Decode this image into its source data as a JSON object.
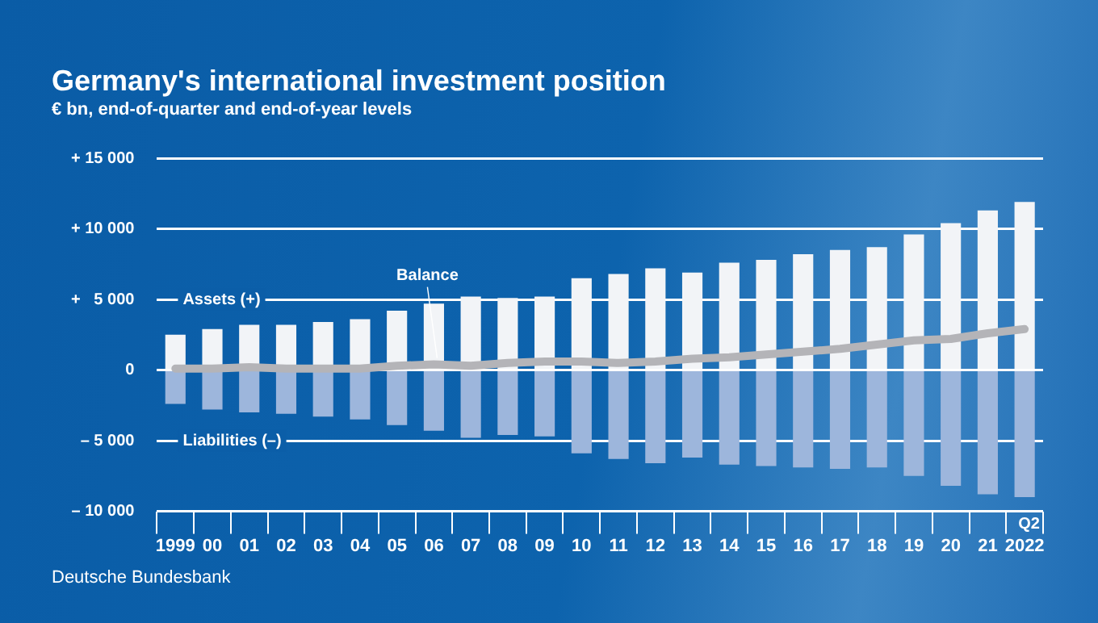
{
  "chart_data": {
    "type": "bar",
    "title": "Germany's international investment position",
    "subtitle": "€ bn, end-of-quarter and end-of-year levels",
    "categories": [
      "1999",
      "00",
      "01",
      "02",
      "03",
      "04",
      "05",
      "06",
      "07",
      "08",
      "09",
      "10",
      "11",
      "12",
      "13",
      "14",
      "15",
      "16",
      "17",
      "18",
      "19",
      "20",
      "21",
      "2022"
    ],
    "series": [
      {
        "name": "Assets (+)",
        "color": "#f2f4f7",
        "values": [
          2500,
          2900,
          3200,
          3200,
          3400,
          3600,
          4200,
          4700,
          5200,
          5100,
          5200,
          6500,
          6800,
          7200,
          6900,
          7600,
          7800,
          8200,
          8500,
          8700,
          9600,
          10400,
          11300,
          11900
        ]
      },
      {
        "name": "Liabilities (–)",
        "color": "#9db6dc",
        "values": [
          -2400,
          -2800,
          -3000,
          -3100,
          -3300,
          -3500,
          -3900,
          -4300,
          -4800,
          -4600,
          -4700,
          -5900,
          -6300,
          -6600,
          -6200,
          -6700,
          -6800,
          -6900,
          -7000,
          -6900,
          -7500,
          -8200,
          -8800,
          -9000
        ]
      },
      {
        "name": "Balance",
        "type": "line",
        "color": "#b4b4b8",
        "values": [
          100,
          100,
          200,
          100,
          100,
          100,
          300,
          400,
          300,
          500,
          600,
          600,
          500,
          600,
          800,
          900,
          1100,
          1300,
          1500,
          1800,
          2100,
          2200,
          2600,
          2900
        ]
      }
    ],
    "stacked": true,
    "ylim": [
      -10000,
      15000
    ],
    "yticks": [
      {
        "value": 15000,
        "label": "+ 15 000"
      },
      {
        "value": 10000,
        "label": "+ 10 000"
      },
      {
        "value": 5000,
        "label": "+   5 000"
      },
      {
        "value": 0,
        "label": "0"
      },
      {
        "value": -5000,
        "label": "– 5 000"
      },
      {
        "value": -10000,
        "label": "– 10 000"
      }
    ],
    "grid": "y",
    "legend": false,
    "marker": "none",
    "annotations": [
      "Q2",
      "Deutsche Bundesbank"
    ]
  }
}
